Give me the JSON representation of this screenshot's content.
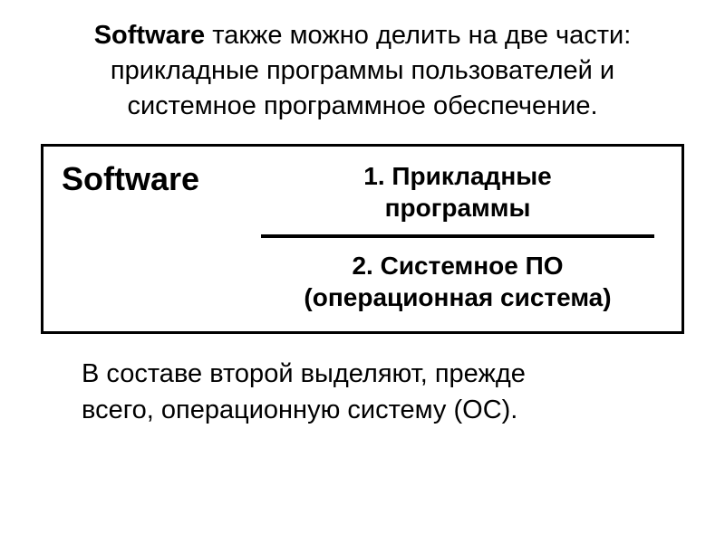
{
  "intro": {
    "bold_lead": "Software",
    "rest_line1": " также можно делить на две части:",
    "line2": "прикладные программы пользователей и",
    "line3": "системное программное обеспечение."
  },
  "diagram": {
    "label": "Software",
    "part1_line1": "1. Прикладные",
    "part1_line2": "программы",
    "part2_line1": "2. Системное ПО",
    "part2_line2": "(операционная система)",
    "border_color": "#000000",
    "divider_color": "#000000",
    "label_fontsize": 36,
    "part_fontsize": 28
  },
  "footer": {
    "line1": "В составе второй выделяют, прежде",
    "line2": "всего, операционную систему (ОС)."
  },
  "colors": {
    "background": "#ffffff",
    "text": "#000000"
  },
  "typography": {
    "intro_fontsize": 29,
    "footer_fontsize": 29,
    "font_family": "Arial"
  }
}
